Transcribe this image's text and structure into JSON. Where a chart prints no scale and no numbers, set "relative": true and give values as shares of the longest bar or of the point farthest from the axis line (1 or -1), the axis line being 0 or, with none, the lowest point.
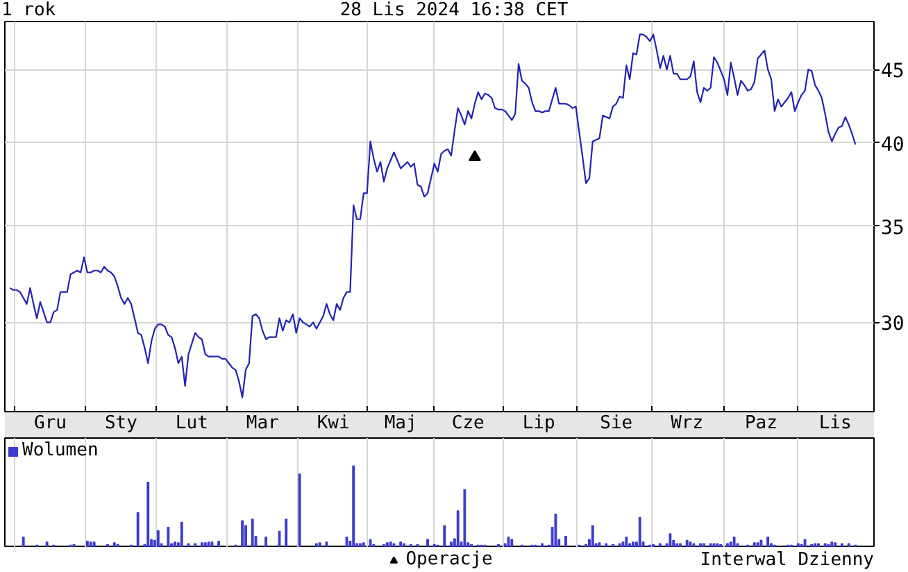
{
  "chart_data": [
    {
      "type": "line",
      "title": "1 rok",
      "subtitle": "28 Lis 2024 16:38 CET",
      "log": true,
      "grid": true,
      "legend": "bottom",
      "categories": [
        null,
        null,
        null,
        null,
        null,
        null,
        null,
        null,
        null,
        null,
        null,
        null,
        "Gru",
        null,
        null,
        null,
        null,
        null,
        null,
        null,
        null,
        null,
        null,
        null,
        null,
        null,
        null,
        null,
        null,
        null,
        null,
        null,
        null,
        "Sty",
        null,
        null,
        null,
        null,
        null,
        null,
        null,
        null,
        null,
        null,
        null,
        null,
        null,
        null,
        null,
        null,
        null,
        null,
        null,
        null,
        "Lut",
        null,
        null,
        null,
        null,
        null,
        null,
        null,
        null,
        null,
        null,
        null,
        null,
        null,
        null,
        null,
        null,
        null,
        null,
        null,
        null,
        "Mar",
        null,
        null,
        null,
        null,
        null,
        null,
        null,
        null,
        null,
        null,
        null,
        null,
        null,
        null,
        null,
        null,
        null,
        null,
        null,
        null,
        "Kwi",
        null,
        null,
        null,
        null,
        null,
        null,
        null,
        null,
        null,
        null,
        null,
        null,
        null,
        null,
        null,
        null,
        null,
        null,
        null,
        "Maj",
        null,
        null,
        null,
        null,
        null,
        null,
        null,
        null,
        null,
        null,
        null,
        null,
        null,
        null,
        null,
        null,
        null,
        null,
        null,
        "Cze",
        null,
        null,
        null,
        null,
        null,
        null,
        null,
        null,
        null,
        null,
        null,
        null,
        null,
        null,
        null,
        null,
        null,
        null,
        null,
        null,
        "Lip",
        null,
        null,
        null,
        null,
        null,
        null,
        null,
        null,
        null,
        null,
        null,
        null,
        null,
        null,
        null,
        null,
        null,
        null,
        null,
        null,
        null,
        null,
        "Sie",
        null,
        null,
        null,
        null,
        null,
        null,
        null,
        null,
        null,
        null,
        null,
        null,
        null,
        null,
        null,
        null,
        null,
        null,
        null,
        null,
        "Wrz",
        null,
        null,
        null,
        null,
        null,
        null,
        null,
        null,
        null,
        null,
        null,
        null,
        null,
        null,
        null,
        null,
        null,
        null,
        null,
        null,
        null,
        "Paz",
        null,
        null,
        null,
        null,
        null,
        null,
        null,
        null,
        null,
        null,
        null,
        null,
        null,
        null,
        null,
        null,
        null,
        null,
        null,
        null,
        null,
        "Lis",
        null,
        null,
        null,
        null,
        null,
        null
      ],
      "ylim": [
        26,
        48.6
      ],
      "yticks": [
        30,
        35,
        40,
        45
      ],
      "series": [
        {
          "color": "#2222b4",
          "values": [
            31.7,
            31.6,
            31.6,
            31.5,
            31.2,
            30.9,
            31.7,
            30.9,
            30.2,
            31.0,
            30.5,
            30.0,
            30.0,
            30.5,
            30.6,
            31.5,
            31.5,
            31.5,
            32.4,
            32.5,
            32.6,
            32.5,
            33.3,
            32.5,
            32.5,
            32.6,
            32.6,
            32.5,
            32.8,
            32.6,
            32.5,
            32.3,
            31.8,
            31.2,
            30.9,
            31.2,
            30.9,
            30.2,
            29.5,
            29.4,
            28.8,
            28.1,
            29.1,
            29.7,
            29.9,
            29.9,
            29.8,
            29.4,
            29.3,
            28.8,
            28.1,
            28.4,
            27.1,
            28.5,
            29.0,
            29.5,
            29.3,
            29.2,
            28.5,
            28.4,
            28.4,
            28.4,
            28.4,
            28.3,
            28.3,
            28.1,
            27.9,
            27.8,
            27.3,
            26.6,
            27.8,
            28.1,
            30.3,
            30.4,
            30.2,
            29.6,
            29.2,
            29.3,
            29.3,
            29.3,
            30.2,
            29.6,
            30.1,
            30.0,
            30.4,
            29.5,
            30.2,
            30.0,
            29.9,
            29.8,
            30.0,
            29.7,
            30.0,
            30.3,
            30.9,
            30.4,
            30.1,
            30.9,
            30.6,
            31.2,
            31.5,
            31.5,
            36.2,
            35.4,
            35.4,
            36.9,
            36.9,
            40.1,
            39.0,
            38.2,
            38.8,
            37.6,
            38.4,
            38.9,
            39.4,
            38.9,
            38.4,
            38.6,
            38.8,
            38.5,
            38.7,
            37.4,
            37.3,
            36.7,
            36.9,
            37.8,
            38.7,
            38.2,
            39.3,
            39.5,
            39.6,
            39.2,
            40.8,
            42.3,
            41.8,
            41.2,
            42.1,
            41.6,
            42.6,
            43.4,
            42.9,
            43.3,
            43.2,
            43.0,
            42.3,
            42.2,
            42.2,
            42.1,
            41.8,
            41.5,
            41.9,
            45.4,
            44.2,
            44.0,
            43.7,
            42.7,
            42.1,
            42.1,
            42.0,
            42.1,
            42.1,
            42.9,
            43.7,
            42.6,
            42.6,
            42.6,
            42.5,
            42.3,
            42.4,
            40.7,
            39.1,
            37.5,
            37.8,
            40.1,
            40.2,
            40.3,
            41.8,
            41.7,
            41.6,
            42.4,
            42.6,
            43.1,
            43.0,
            45.3,
            44.3,
            46.2,
            46.1,
            47.6,
            47.6,
            47.4,
            47.1,
            47.6,
            46.4,
            45.1,
            46.0,
            45.0,
            46.0,
            44.7,
            44.7,
            44.3,
            44.3,
            44.3,
            44.5,
            45.6,
            43.4,
            42.7,
            43.7,
            43.5,
            43.7,
            45.9,
            45.5,
            44.9,
            44.3,
            43.2,
            45.5,
            44.4,
            43.2,
            44.2,
            43.9,
            43.5,
            43.6,
            44.1,
            45.8,
            46.1,
            46.4,
            45.0,
            44.3,
            42.1,
            42.9,
            42.4,
            42.7,
            43.0,
            43.4,
            42.1,
            42.7,
            43.2,
            43.5,
            45.0,
            44.9,
            43.9,
            43.5,
            43.0,
            41.9,
            40.7,
            40.1,
            40.6,
            41.0,
            41.1,
            41.7,
            41.2,
            40.6,
            39.9
          ]
        },
        {
          "type": "scatter",
          "name": "Operacje",
          "color": "#000000",
          "marker": "triangle",
          "values": [
            null,
            null,
            null,
            null,
            null,
            null,
            null,
            null,
            null,
            null,
            null,
            null,
            null,
            null,
            null,
            null,
            null,
            null,
            null,
            null,
            null,
            null,
            null,
            null,
            null,
            null,
            null,
            null,
            null,
            null,
            null,
            null,
            null,
            null,
            null,
            null,
            null,
            null,
            null,
            null,
            null,
            null,
            null,
            null,
            null,
            null,
            null,
            null,
            null,
            null,
            null,
            null,
            null,
            null,
            null,
            null,
            null,
            null,
            null,
            null,
            null,
            null,
            null,
            null,
            null,
            null,
            null,
            null,
            null,
            null,
            null,
            null,
            null,
            null,
            null,
            null,
            null,
            null,
            null,
            null,
            null,
            null,
            null,
            null,
            null,
            null,
            null,
            null,
            null,
            null,
            null,
            null,
            null,
            null,
            null,
            null,
            null,
            null,
            null,
            null,
            null,
            null,
            null,
            null,
            null,
            null,
            null,
            null,
            null,
            null,
            null,
            null,
            null,
            null,
            null,
            null,
            null,
            null,
            null,
            null,
            null,
            null,
            null,
            null,
            null,
            null,
            null,
            null,
            null,
            null,
            null,
            null,
            null,
            null,
            null,
            null,
            null,
            null,
            39.1,
            null,
            null,
            null,
            null,
            null,
            null,
            null,
            null,
            null,
            null,
            null,
            null,
            null,
            null,
            null,
            null,
            null,
            null,
            null,
            null,
            null,
            null,
            null,
            null,
            null,
            null,
            null,
            null,
            null,
            null,
            null,
            null,
            null,
            null,
            null,
            null,
            null,
            null,
            null,
            null,
            null,
            null,
            null,
            null,
            null,
            null,
            null,
            null,
            null,
            null,
            null,
            null,
            null,
            null,
            null,
            null,
            null,
            null,
            null,
            null,
            null,
            null,
            null,
            null,
            null,
            null,
            null,
            null,
            null,
            null,
            null,
            null,
            null,
            null,
            null,
            null,
            null,
            null,
            null,
            null,
            null,
            null,
            null,
            null,
            null,
            null,
            null,
            null,
            null,
            null,
            null,
            null,
            null,
            null,
            null,
            null,
            null,
            null,
            null,
            null,
            null,
            null,
            null,
            null,
            null,
            null,
            null,
            null,
            null,
            null,
            null,
            null,
            null
          ]
        }
      ]
    },
    {
      "type": "bar",
      "relative": true,
      "grid": "x",
      "legend": "top left",
      "tick_labels": false,
      "annotations": [
        "Interwal Dzienny"
      ],
      "categories": [
        null,
        null,
        null,
        null,
        null,
        null,
        null,
        null,
        null,
        null,
        null,
        null,
        null,
        null,
        null,
        null,
        null,
        null,
        null,
        null,
        null,
        null,
        null,
        null,
        null,
        null,
        null,
        null,
        null,
        null,
        null,
        null,
        null,
        null,
        null,
        null,
        null,
        null,
        null,
        null,
        null,
        null,
        null,
        null,
        null,
        null,
        null,
        null,
        null,
        null,
        null,
        null,
        null,
        null,
        null,
        null,
        null,
        null,
        null,
        null,
        null,
        null,
        null,
        null,
        null,
        null,
        null,
        null,
        null,
        null,
        null,
        null,
        null,
        null,
        null,
        null,
        null,
        null,
        null,
        null,
        null,
        null,
        null,
        null,
        null,
        null,
        null,
        null,
        null,
        null,
        null,
        null,
        null,
        null,
        null,
        null,
        null,
        null,
        null,
        null,
        null,
        null,
        null,
        null,
        null,
        null,
        null,
        null,
        null,
        null,
        null,
        null,
        null,
        null,
        null,
        null,
        null,
        null,
        null,
        null,
        null,
        null,
        null,
        null,
        null,
        null,
        null,
        null,
        null,
        null,
        null,
        null,
        null,
        null,
        null,
        null,
        null,
        null,
        null,
        null,
        null,
        null,
        null,
        null,
        null,
        null,
        null,
        null,
        null,
        null,
        null,
        null,
        null,
        null,
        null,
        null,
        null,
        null,
        null,
        null,
        null,
        null,
        null,
        null,
        null,
        null,
        null,
        null,
        null,
        null,
        null,
        null,
        null,
        null,
        null,
        null,
        null,
        null,
        null,
        null,
        null,
        null,
        null,
        null,
        null,
        null,
        null,
        null,
        null,
        null,
        null,
        null,
        null,
        null,
        null,
        null,
        null,
        null,
        null,
        null,
        null,
        null,
        null,
        null,
        null,
        null,
        null,
        null,
        null,
        null,
        null,
        null,
        null,
        null,
        null,
        null,
        null,
        null,
        null,
        null,
        null,
        null,
        null,
        null,
        null,
        null,
        null,
        null,
        null,
        null,
        null,
        null,
        null,
        null,
        null,
        null,
        null,
        null,
        null,
        null,
        null,
        null,
        null,
        null,
        null,
        null,
        null,
        null,
        null,
        null,
        null,
        null
      ],
      "series": [
        {
          "name": "Wolumen",
          "color": "#3b3bcc",
          "values": [
            null,
            null,
            null,
            null,
            0.13,
            null,
            null,
            null,
            0.03,
            null,
            null,
            0.07,
            null,
            0.03,
            null,
            null,
            null,
            null,
            0.03,
            0.04,
            null,
            null,
            null,
            0.08,
            0.07,
            0.07,
            null,
            null,
            null,
            0.04,
            null,
            0.06,
            0.04,
            null,
            null,
            null,
            0.03,
            null,
            0.43,
            null,
            0.04,
            0.8,
            0.1,
            0.09,
            0.21,
            0.05,
            null,
            0.25,
            0.05,
            0.07,
            0.06,
            0.31,
            null,
            0.05,
            null,
            0.05,
            null,
            0.06,
            0.06,
            0.07,
            0.07,
            null,
            0.08,
            null,
            null,
            null,
            null,
            0.03,
            null,
            0.33,
            0.27,
            null,
            0.35,
            0.14,
            null,
            null,
            0.13,
            null,
            null,
            null,
            0.2,
            null,
            0.35,
            null,
            null,
            null,
            0.9,
            null,
            null,
            null,
            null,
            0.05,
            0.06,
            null,
            0.07,
            null,
            null,
            null,
            null,
            null,
            0.13,
            0.08,
            1.0,
            0.05,
            0.05,
            0.06,
            null,
            0.1,
            0.04,
            null,
            null,
            0.04,
            0.06,
            0.07,
            0.05,
            null,
            0.07,
            0.05,
            null,
            0.04,
            null,
            0.04,
            null,
            null,
            0.1,
            null,
            0.04,
            0.03,
            null,
            0.27,
            null,
            0.07,
            0.11,
            0.45,
            0.07,
            0.71,
            0.06,
            0.04,
            null,
            0.03,
            0.03,
            0.03,
            null,
            null,
            null,
            0.04,
            null,
            0.05,
            0.13,
            0.1,
            null,
            null,
            0.03,
            null,
            null,
            0.03,
            0.03,
            null,
            0.05,
            null,
            0.03,
            0.25,
            0.41,
            0.1,
            null,
            0.14,
            null,
            null,
            null,
            0.03,
            null,
            0.04,
            0.1,
            0.27,
            0.05,
            0.06,
            null,
            0.05,
            null,
            0.04,
            null,
            0.05,
            0.07,
            0.13,
            0.05,
            0.07,
            0.07,
            0.37,
            0.07,
            null,
            0.03,
            0.04,
            null,
            0.05,
            null,
            0.05,
            0.17,
            0.09,
            0.05,
            0.05,
            null,
            0.09,
            0.07,
            0.05,
            null,
            0.05,
            0.05,
            null,
            0.05,
            0.05,
            0.05,
            0.04,
            null,
            0.05,
            0.07,
            0.13,
            0.05,
            null,
            null,
            0.03,
            null,
            0.06,
            0.06,
            0.09,
            null,
            0.13,
            0.05,
            0.03,
            null,
            null,
            null,
            0.03,
            0.03,
            null,
            0.05,
            0.04,
            0.1,
            null,
            0.04,
            0.05,
            0.05,
            null,
            0.05,
            0.04,
            0.07,
            0.06,
            null,
            0.05,
            null,
            0.05,
            null,
            0.03
          ]
        }
      ]
    }
  ]
}
